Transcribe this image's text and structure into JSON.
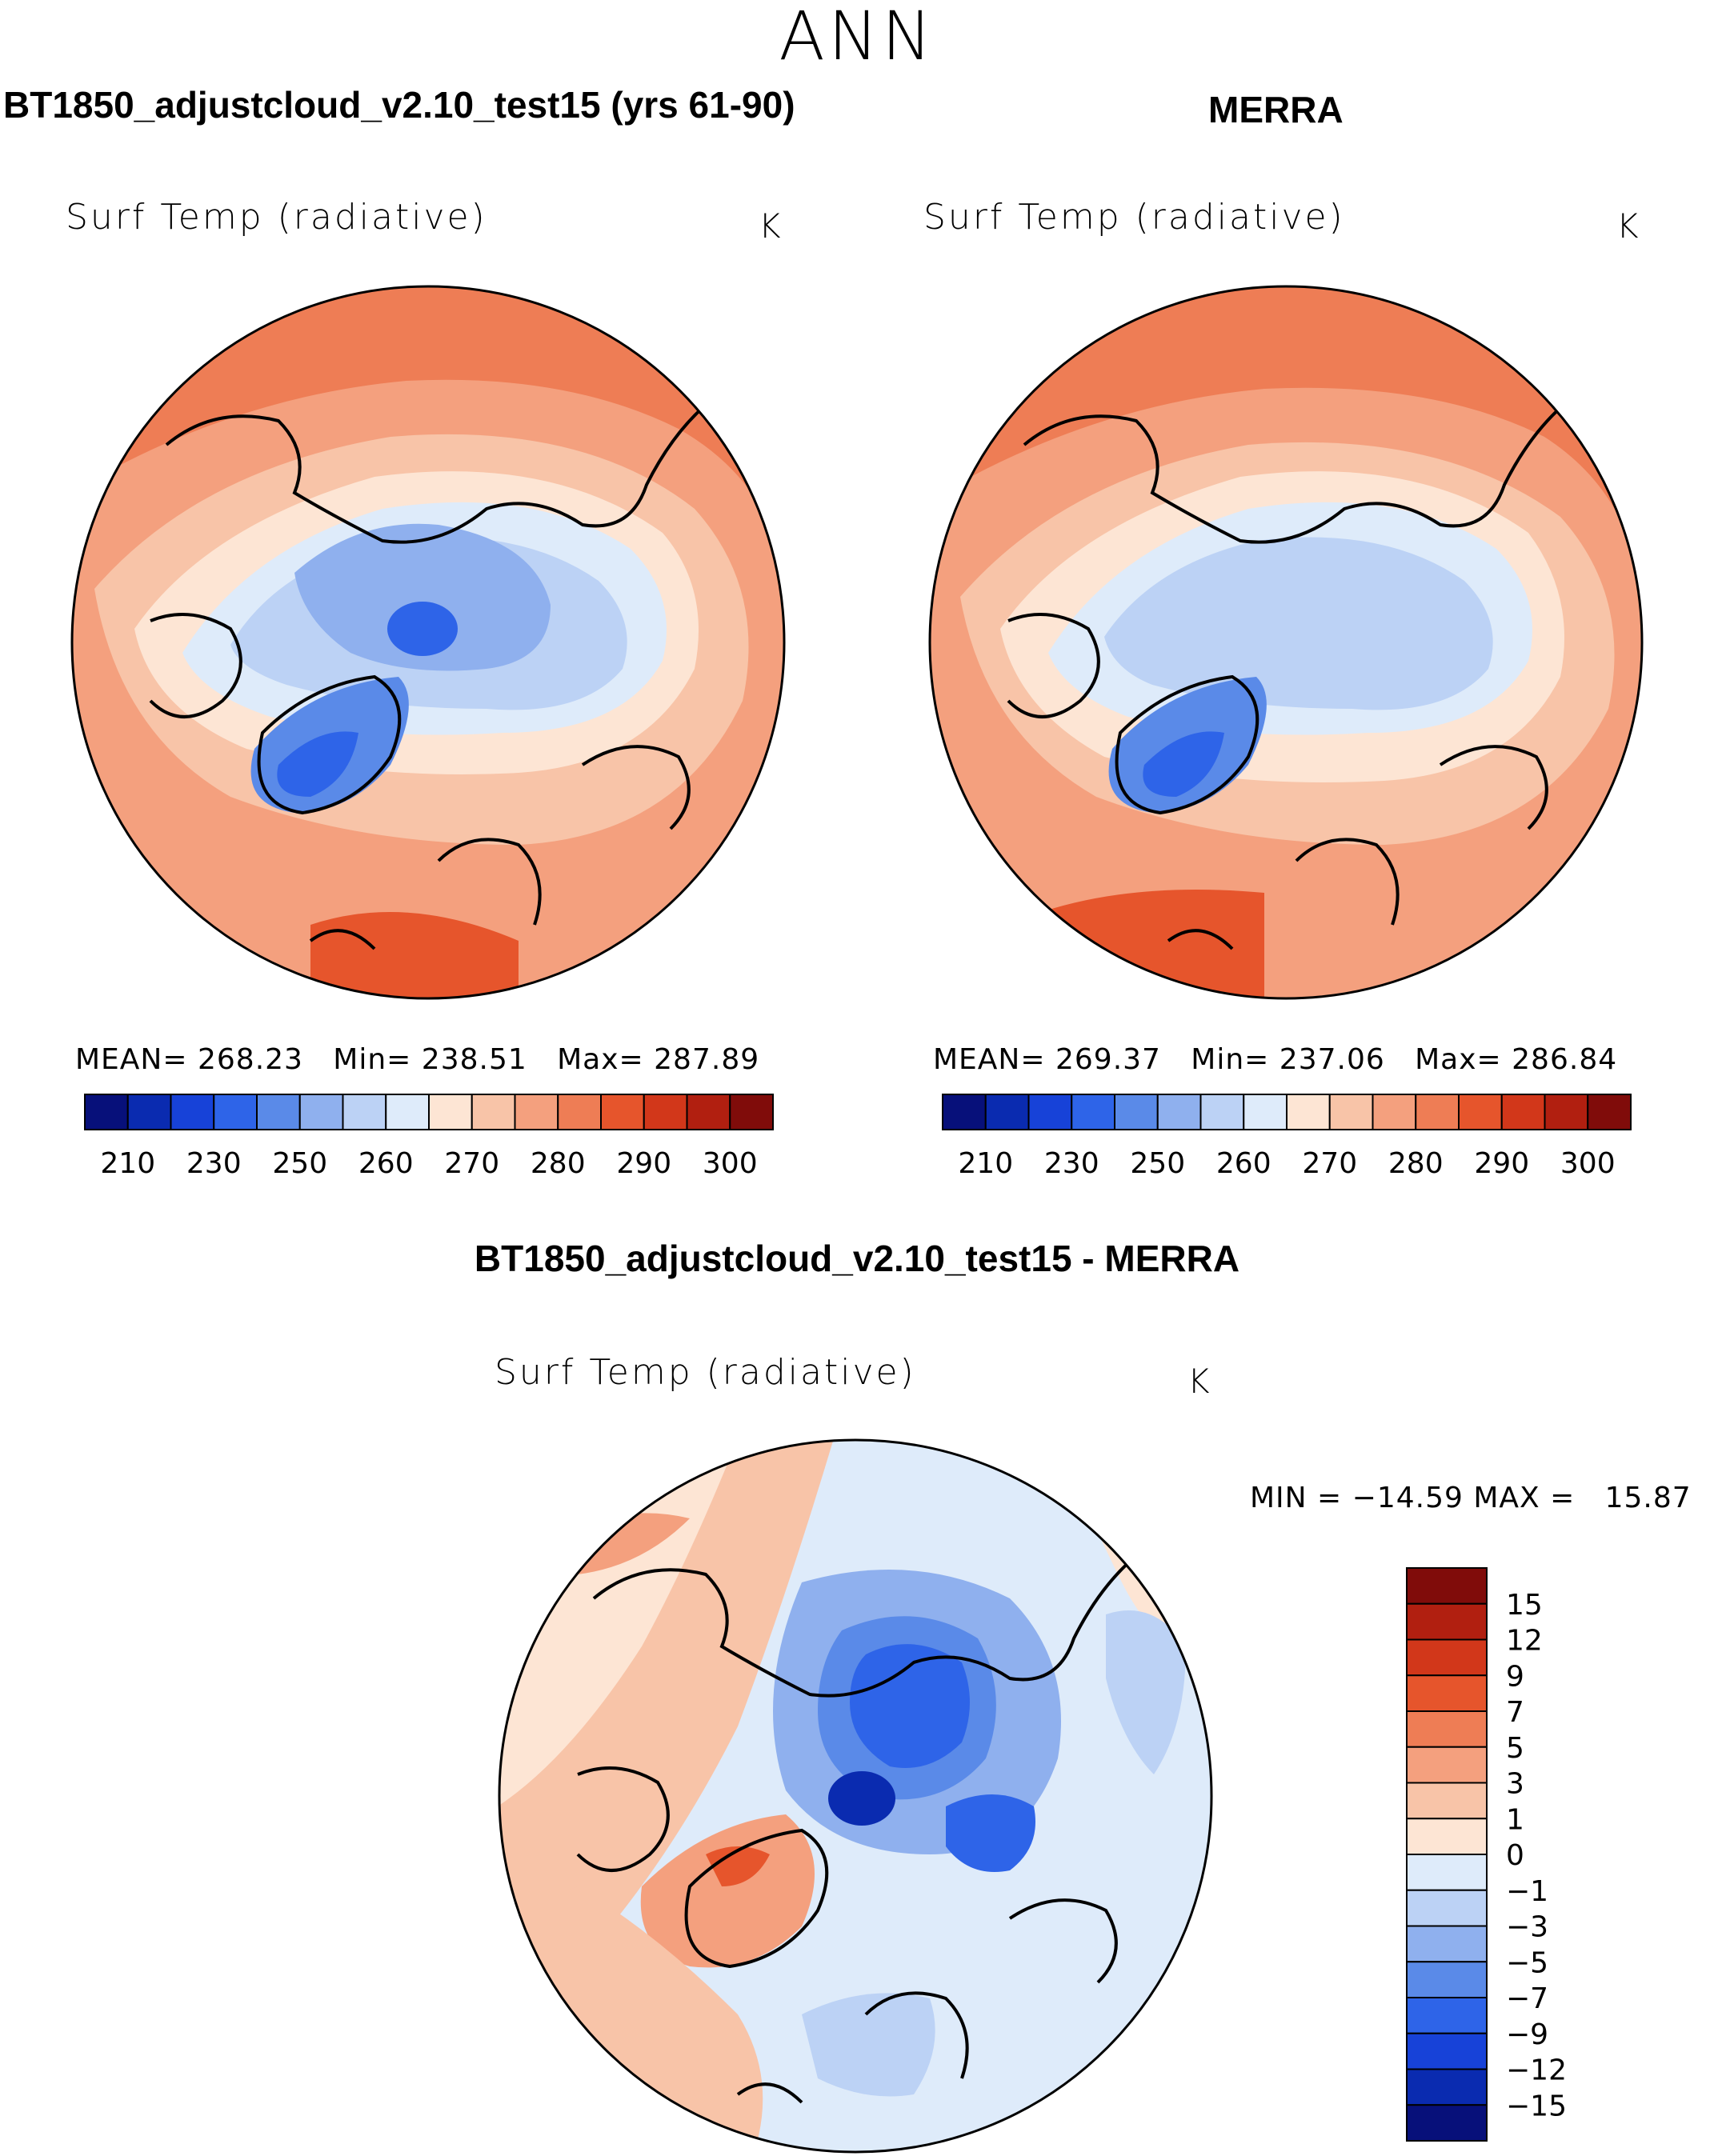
{
  "page": {
    "title": "ANN"
  },
  "panels": [
    {
      "id": "model",
      "title": "BT1850_adjustcloud_v2.10_test15 (yrs 61-90)",
      "variable": "Surf Temp (radiative)",
      "unit": "K",
      "stats": {
        "mean_label": "MEAN=",
        "mean": "268.23",
        "min_label": "Min=",
        "min": "238.51",
        "max_label": "Max=",
        "max": "287.89"
      }
    },
    {
      "id": "obs",
      "title": "MERRA",
      "variable": "Surf Temp (radiative)",
      "unit": "K",
      "stats": {
        "mean_label": "MEAN=",
        "mean": "269.37",
        "min_label": "Min=",
        "min": "237.06",
        "max_label": "Max=",
        "max": "286.84"
      }
    }
  ],
  "diff_panel": {
    "title": "BT1850_adjustcloud_v2.10_test15 - MERRA",
    "variable": "Surf Temp (radiative)",
    "unit": "K",
    "range_text": "MIN = −14.59 MAX =   15.87"
  },
  "colorbars": {
    "absolute": {
      "orientation": "horizontal",
      "colors": [
        "#07107a",
        "#0a2bb0",
        "#1742d8",
        "#2e64e8",
        "#5a8ae8",
        "#8fb0ee",
        "#bcd2f5",
        "#deebfa",
        "#fde5d4",
        "#f8c4a8",
        "#f4a07e",
        "#ee7d55",
        "#e6552c",
        "#d2371a",
        "#b11f10",
        "#800c0a"
      ],
      "tick_labels": [
        "210",
        "230",
        "250",
        "260",
        "270",
        "280",
        "290",
        "300"
      ]
    },
    "difference": {
      "orientation": "vertical",
      "colors_top_to_bottom": [
        "#800c0a",
        "#b11f10",
        "#d2371a",
        "#e6552c",
        "#ee7d55",
        "#f4a07e",
        "#f8c4a8",
        "#fde5d4",
        "#deebfa",
        "#bcd2f5",
        "#8fb0ee",
        "#5a8ae8",
        "#2e64e8",
        "#1742d8",
        "#0a2bb0",
        "#07107a"
      ],
      "tick_labels": [
        "15",
        "12",
        "9",
        "7",
        "5",
        "3",
        "1",
        "0",
        "−1",
        "−3",
        "−5",
        "−7",
        "−9",
        "−12",
        "−15"
      ]
    }
  },
  "map_field_colors": {
    "warm_outer": "#ee7d55",
    "warm_mid": "#f4a07e",
    "warm_light": "#f8c4a8",
    "warm_pale": "#fde5d4",
    "cool_pale": "#deebfa",
    "cool_light": "#bcd2f5",
    "cool_mid": "#8fb0ee",
    "cool_strong": "#5a8ae8",
    "cool_deep": "#2e64e8",
    "hot": "#e6552c"
  }
}
